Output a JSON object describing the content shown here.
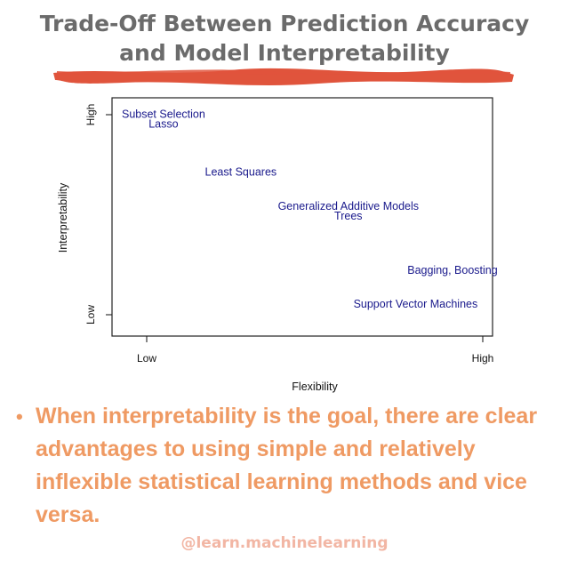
{
  "title": {
    "line1": "Trade-Off Between Prediction Accuracy",
    "line2": "and Model Interpretability"
  },
  "colors": {
    "title": "#6b6b6b",
    "brush": "#e0543c",
    "label": "#1a1a8c",
    "bullet": "#ef9a63",
    "handle": "#f2b6a4"
  },
  "chart_data": {
    "type": "scatter",
    "xlabel": "Flexibility",
    "ylabel": "Interpretability",
    "xticks": [
      "Low",
      "High"
    ],
    "yticks": [
      "Low",
      "High"
    ],
    "xlim": [
      0,
      1
    ],
    "ylim": [
      0,
      1
    ],
    "grid": false,
    "points": [
      {
        "label": "Subset Selection",
        "x": 0.05,
        "y": 1.0
      },
      {
        "label": "Lasso",
        "x": 0.05,
        "y": 0.95
      },
      {
        "label": "Least Squares",
        "x": 0.28,
        "y": 0.71
      },
      {
        "label": "Generalized Additive Models",
        "x": 0.6,
        "y": 0.54
      },
      {
        "label": "Trees",
        "x": 0.6,
        "y": 0.49
      },
      {
        "label": "Bagging, Boosting",
        "x": 0.91,
        "y": 0.22
      },
      {
        "label": "Support Vector Machines",
        "x": 0.8,
        "y": 0.05
      }
    ]
  },
  "bullet": {
    "text": "When interpretability is the goal, there are clear advantages to using simple and relatively inflexible statistical learning methods and vice versa."
  },
  "footer": {
    "handle": "@learn.machinelearning"
  }
}
